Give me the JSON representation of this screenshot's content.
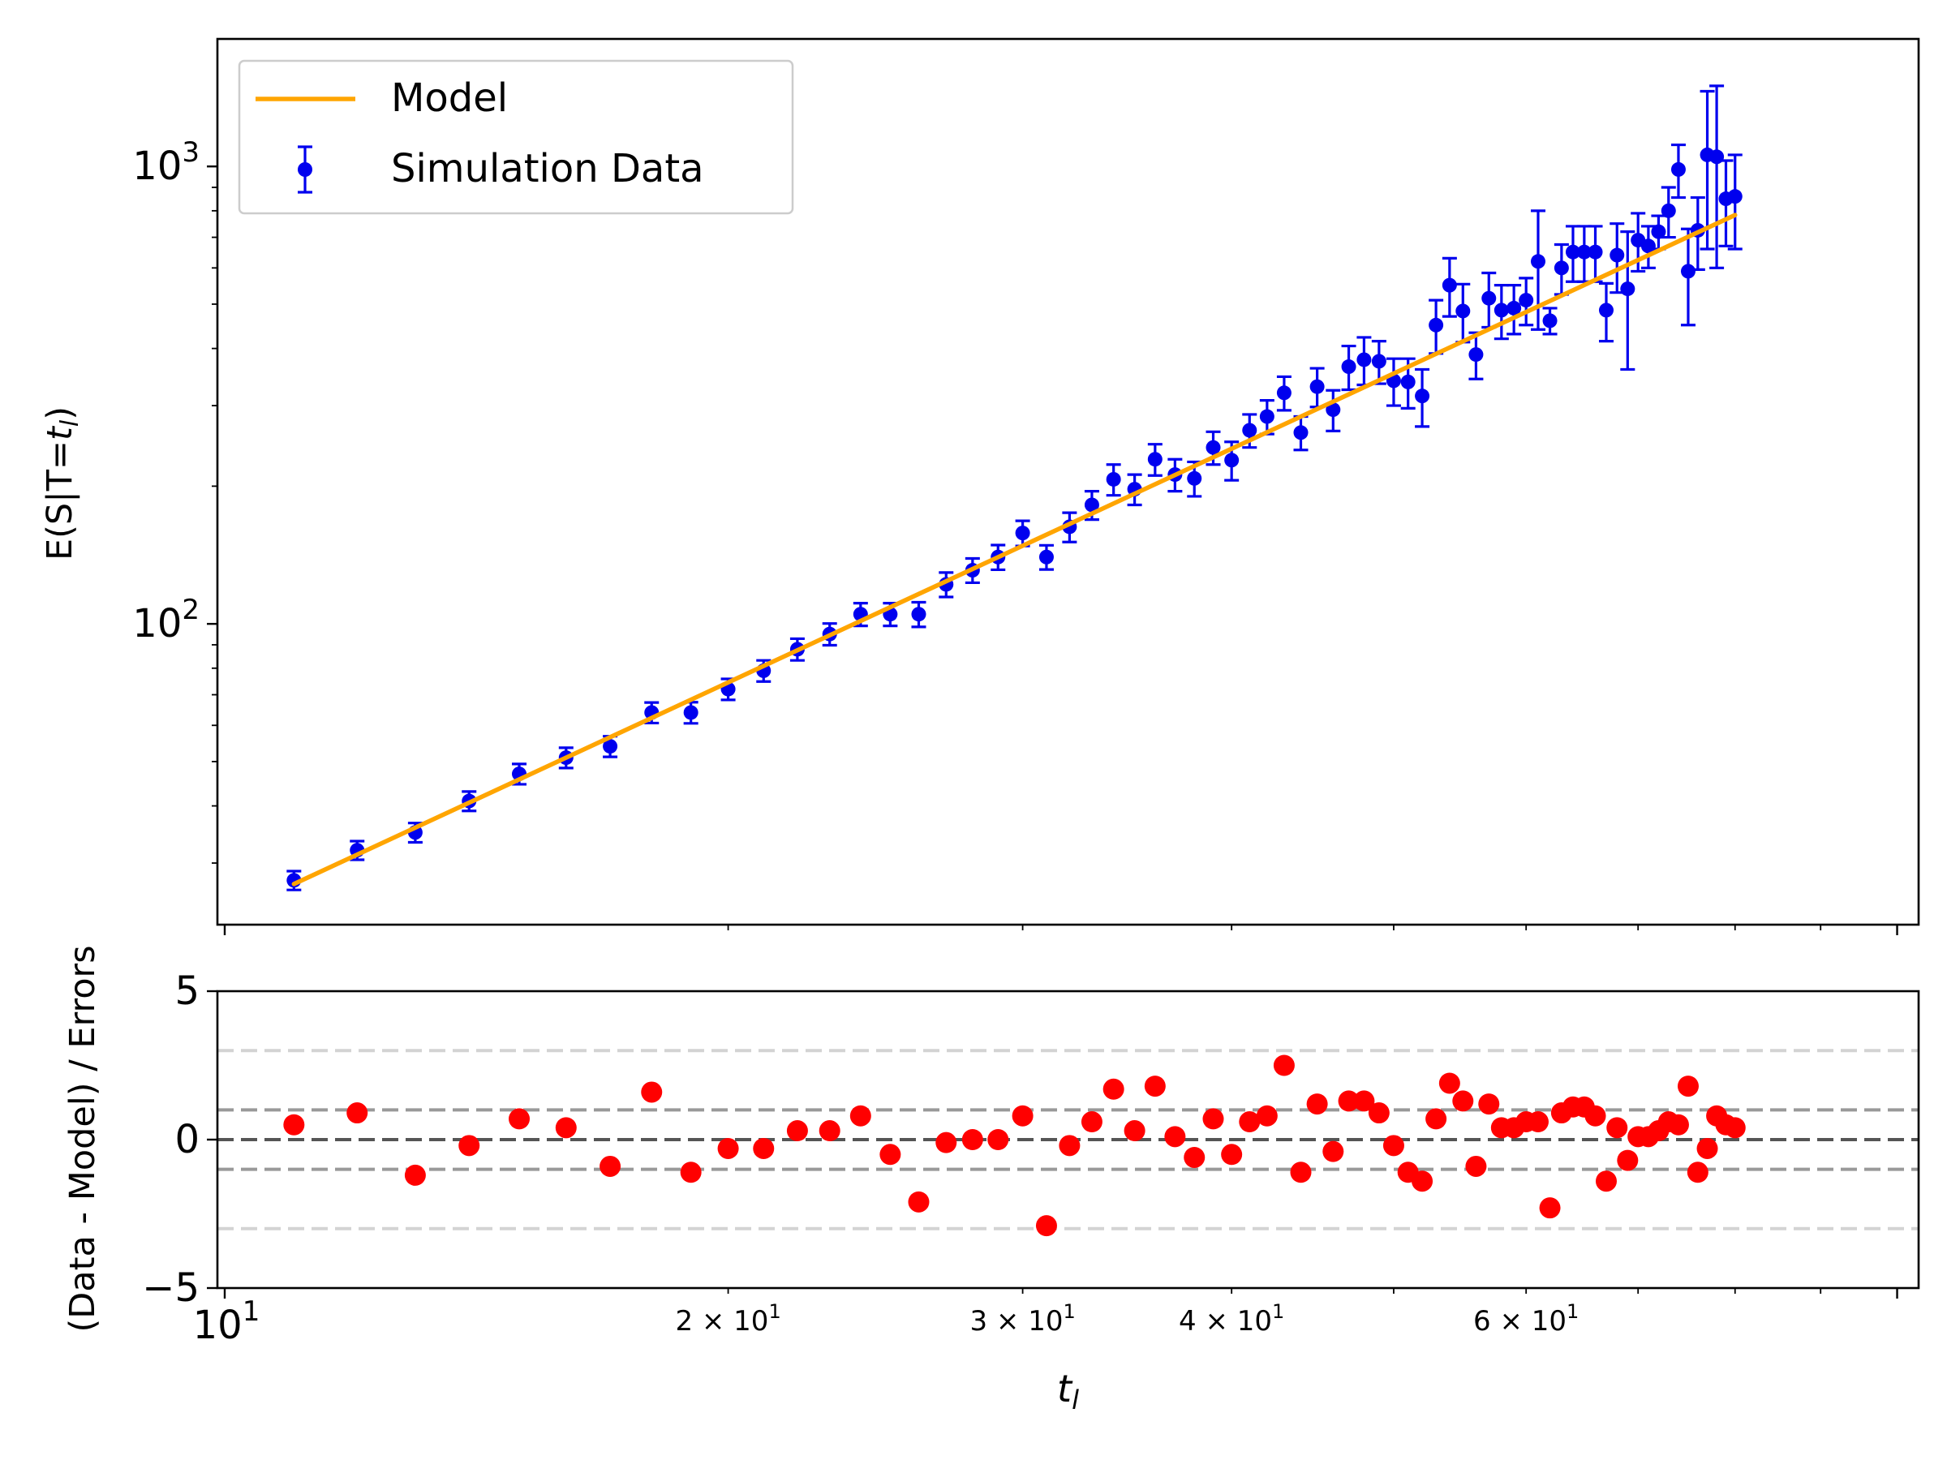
{
  "figure": {
    "colors": {
      "model": "#ffa500",
      "data": "#0000ee",
      "residual": "#ff0000",
      "zero_line": "#555555",
      "one_sigma_line": "#999999",
      "three_sigma_line": "#d3d3d3"
    }
  },
  "chart_data": [
    {
      "type": "scatter",
      "panel": "main",
      "title": "",
      "xlabel": "",
      "ylabel_prefix": "E(S|T=",
      "ylabel_var": "t",
      "ylabel_sub": "l",
      "ylabel_suffix": ")",
      "xscale": "log",
      "yscale": "log",
      "xlim": [
        9.9,
        103
      ],
      "ylim": [
        22,
        1900
      ],
      "y_ticks": [
        {
          "value": 100,
          "base": "10",
          "exp": "2"
        },
        {
          "value": 1000,
          "base": "10",
          "exp": "3"
        }
      ],
      "legend": {
        "placement": "upper left",
        "entries": [
          {
            "label": "Model",
            "kind": "line"
          },
          {
            "label": "Simulation Data",
            "kind": "errorbar"
          }
        ]
      },
      "model_line": {
        "name": "Model",
        "x": [
          11,
          80
        ],
        "y": [
          27,
          783
        ]
      },
      "series": [
        {
          "name": "Simulation Data",
          "x": [
            11.0,
            12.0,
            13.0,
            14.0,
            15.0,
            16.0,
            17.0,
            18.0,
            19.0,
            20.0,
            21.0,
            22.0,
            23.0,
            24.0,
            25.0,
            26.0,
            27.0,
            28.0,
            29.0,
            30.0,
            31.0,
            32.0,
            33.0,
            34.0,
            35.0,
            36.0,
            37.0,
            38.0,
            39.0,
            40.0,
            41.0,
            42.0,
            43.0,
            44.0,
            45.0,
            46.0,
            47.0,
            48.0,
            49.0,
            50.0,
            51.0,
            52.0,
            53.0,
            54.0,
            55.0,
            56.0,
            57.0,
            58.0,
            59.0,
            60.0,
            61.0,
            62.0,
            63.0,
            64.0,
            65.0,
            66.0,
            67.0,
            68.0,
            69.0,
            70.0,
            71.0,
            72.0,
            73.0,
            74.0,
            75.0,
            76.0,
            77.0,
            78.0,
            79.0,
            80.0
          ],
          "y": [
            27.5,
            32,
            35,
            41,
            47,
            51,
            54,
            64,
            64,
            72,
            79,
            88,
            95,
            105,
            105,
            105,
            122,
            131,
            140,
            158,
            140,
            163,
            182,
            207,
            197,
            229,
            212,
            208,
            243,
            228,
            265,
            284,
            320,
            262,
            330,
            294,
            365,
            378,
            375,
            340,
            338,
            315,
            450,
            550,
            483,
            388,
            515,
            485,
            490,
            510,
            620,
            460,
            600,
            650,
            650,
            650,
            485,
            640,
            540,
            690,
            670,
            720,
            800,
            985,
            590,
            725,
            1060,
            1050,
            850,
            860
          ],
          "err": [
            1.3,
            1.5,
            1.7,
            2.0,
            2.4,
            2.6,
            2.8,
            3.3,
            3.4,
            3.8,
            4.2,
            4.8,
            5.2,
            6.0,
            6.0,
            6.5,
            7.5,
            8.0,
            8.7,
            10,
            8.5,
            12,
            13,
            16,
            15,
            18,
            17,
            18,
            20,
            22,
            22,
            24,
            27,
            22,
            32,
            30,
            40,
            45,
            40,
            40,
            42,
            45,
            60,
            80,
            70,
            45,
            70,
            65,
            60,
            60,
            180,
            30,
            75,
            90,
            90,
            90,
            70,
            110,
            180,
            100,
            70,
            60,
            100,
            130,
            140,
            130,
            400,
            450,
            180,
            200
          ]
        }
      ]
    },
    {
      "type": "scatter",
      "panel": "residuals",
      "title": "",
      "xlabel_var": "t",
      "xlabel_sub": "l",
      "ylabel": "(Data - Model) / Errors",
      "xscale": "log",
      "xlim": [
        9.9,
        103
      ],
      "ylim": [
        -5,
        5
      ],
      "x_ticks": [
        {
          "value": 10,
          "text": "",
          "base": "10",
          "exp": "1",
          "major": true
        },
        {
          "value": 20,
          "text": "2 × 10",
          "exp": "1"
        },
        {
          "value": 30,
          "text": "3 × 10",
          "exp": "1"
        },
        {
          "value": 40,
          "text": "4 × 10",
          "exp": "1"
        },
        {
          "value": 60,
          "text": "6 × 10",
          "exp": "1"
        }
      ],
      "y_ticks": [
        {
          "value": 5,
          "text": "5"
        },
        {
          "value": 0,
          "text": "0"
        },
        {
          "value": -5,
          "text": "−5"
        }
      ],
      "reference_lines": [
        {
          "y": 0,
          "style": "dashed",
          "color_key": "zero_line"
        },
        {
          "y": 1,
          "style": "dashed",
          "color_key": "one_sigma_line"
        },
        {
          "y": -1,
          "style": "dashed",
          "color_key": "one_sigma_line"
        },
        {
          "y": 3,
          "style": "dashed",
          "color_key": "three_sigma_line"
        },
        {
          "y": -3,
          "style": "dashed",
          "color_key": "three_sigma_line"
        }
      ],
      "series": [
        {
          "name": "",
          "x": [
            11.0,
            12.0,
            13.0,
            14.0,
            15.0,
            16.0,
            17.0,
            18.0,
            19.0,
            20.0,
            21.0,
            22.0,
            23.0,
            24.0,
            25.0,
            26.0,
            27.0,
            28.0,
            29.0,
            30.0,
            31.0,
            32.0,
            33.0,
            34.0,
            35.0,
            36.0,
            37.0,
            38.0,
            39.0,
            40.0,
            41.0,
            42.0,
            43.0,
            44.0,
            45.0,
            46.0,
            47.0,
            48.0,
            49.0,
            50.0,
            51.0,
            52.0,
            53.0,
            54.0,
            55.0,
            56.0,
            57.0,
            58.0,
            59.0,
            60.0,
            61.0,
            62.0,
            63.0,
            64.0,
            65.0,
            66.0,
            67.0,
            68.0,
            69.0,
            70.0,
            71.0,
            72.0,
            73.0,
            74.0,
            75.0,
            76.0,
            77.0,
            78.0,
            79.0,
            80.0
          ],
          "y": [
            0.5,
            0.9,
            -1.2,
            -0.2,
            0.7,
            0.4,
            -0.9,
            1.6,
            -1.1,
            -0.3,
            -0.3,
            0.3,
            0.3,
            0.8,
            -0.5,
            -2.1,
            -0.1,
            0.0,
            0.0,
            0.8,
            -2.9,
            -0.2,
            0.6,
            1.7,
            0.3,
            1.8,
            0.1,
            -0.6,
            0.7,
            -0.5,
            0.6,
            0.8,
            2.5,
            -1.1,
            1.2,
            -0.4,
            1.3,
            1.3,
            0.9,
            -0.2,
            -1.1,
            -1.4,
            0.7,
            1.9,
            1.3,
            -0.9,
            1.2,
            0.4,
            0.4,
            0.6,
            0.6,
            -2.3,
            0.9,
            1.1,
            1.1,
            0.8,
            -1.4,
            0.4,
            -0.7,
            0.1,
            0.1,
            0.3,
            0.6,
            0.5,
            1.8,
            -1.1,
            -0.3,
            0.8,
            0.5,
            0.4
          ]
        }
      ]
    }
  ]
}
